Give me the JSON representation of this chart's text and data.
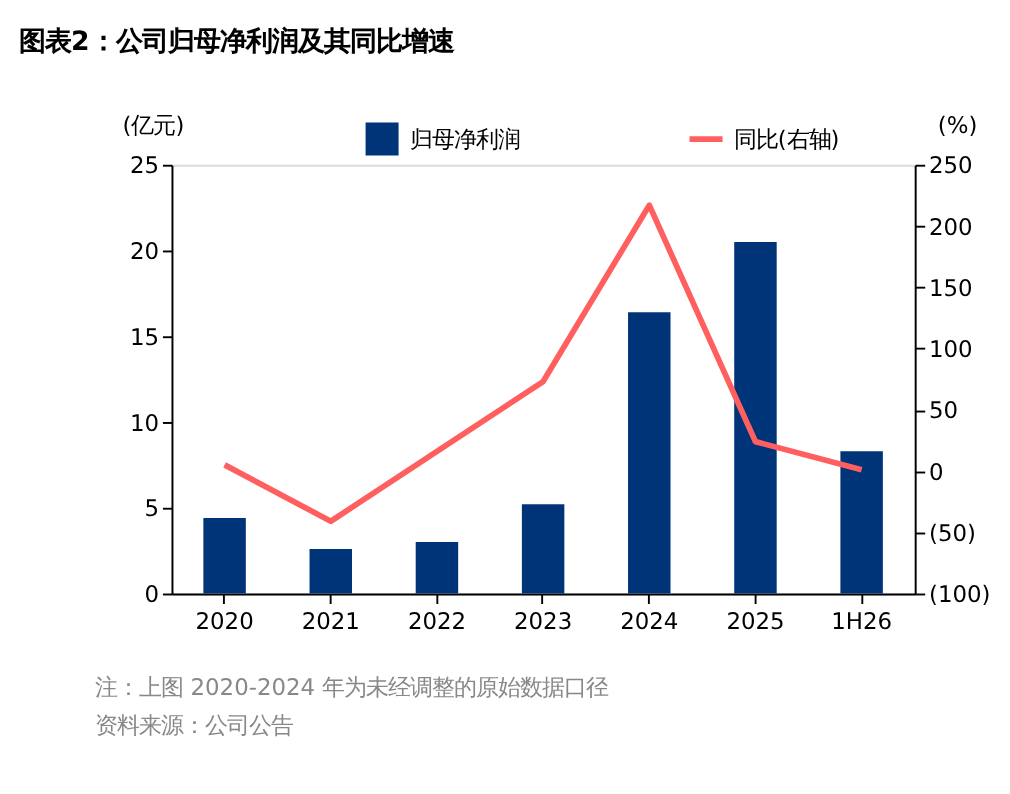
{
  "chart_data": {
    "type": "bar",
    "title": "图表2：公司归母净利润及其同比增速",
    "categories": [
      "2020",
      "2021",
      "2022",
      "2023",
      "2024",
      "2025",
      "1H26"
    ],
    "series": [
      {
        "name": "归母净利润",
        "color": "#003478",
        "values": [
          4.4,
          2.6,
          3.0,
          5.2,
          16.4,
          20.5,
          8.3
        ]
      },
      {
        "name": "同比(右轴)",
        "type": "line",
        "axis": "y2",
        "color": "#ff5f5f",
        "values": [
          5,
          -41,
          16,
          73,
          217,
          24,
          1
        ]
      }
    ],
    "ylabel": "(亿元)",
    "y2label": "(%)",
    "ylim": [
      0,
      25
    ],
    "yticks": [
      0,
      5,
      10,
      15,
      20,
      25
    ],
    "y2lim": [
      -100,
      250
    ],
    "y2ticks": [
      {
        "value": -100,
        "label": "(100)"
      },
      {
        "value": -50,
        "label": "(50)"
      },
      0,
      50,
      100,
      150,
      200,
      250
    ],
    "grid": false,
    "legend": "top",
    "line_style": "solid",
    "marker": "none",
    "annotations": [
      "注：上图 2020-2024 年为未经调整的原始数据口径",
      "资料来源：公司公告"
    ]
  }
}
